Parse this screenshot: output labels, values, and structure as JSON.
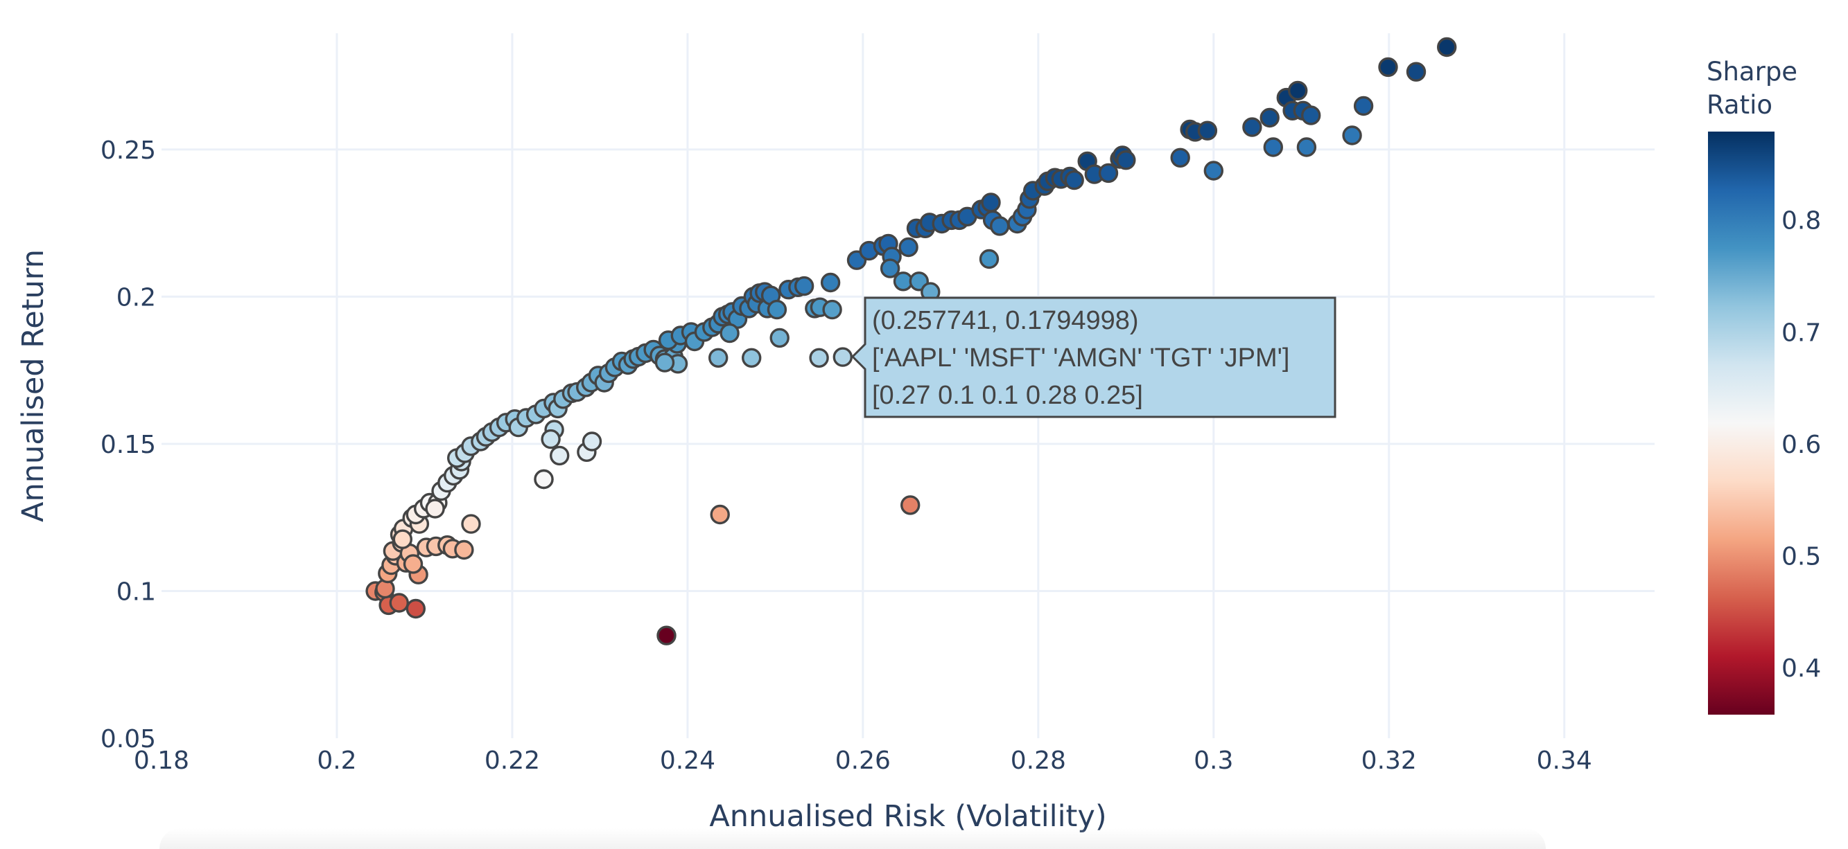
{
  "chart_data": {
    "type": "scatter",
    "title": "",
    "xlabel": "Annualised Risk (Volatility)",
    "ylabel": "Annualised Return",
    "xlim": [
      0.18,
      0.3503
    ],
    "ylim": [
      0.05,
      0.2895
    ],
    "grid": true,
    "x_ticks": [
      0.18,
      0.2,
      0.22,
      0.24,
      0.26,
      0.28,
      0.3,
      0.32,
      0.34
    ],
    "x_tick_labels": [
      "0.18",
      "0.2",
      "0.22",
      "0.24",
      "0.26",
      "0.28",
      "0.3",
      "0.32",
      "0.34"
    ],
    "y_ticks": [
      0.05,
      0.1,
      0.15,
      0.2,
      0.25
    ],
    "y_tick_labels": [
      "0.05",
      "0.1",
      "0.15",
      "0.2",
      "0.25"
    ],
    "colorbar": {
      "title_lines": [
        "Sharpe",
        "Ratio"
      ],
      "colorscale": "RdBu",
      "range": [
        0.358,
        0.879
      ],
      "ticks": [
        0.4,
        0.5,
        0.6,
        0.7,
        0.8
      ],
      "tick_labels": [
        "0.4",
        "0.5",
        "0.6",
        "0.7",
        "0.8"
      ],
      "placement": "right"
    },
    "color_metric": "sharpe = return / risk",
    "marker_outline": "#444444",
    "points": [
      [
        0.2044,
        0.1
      ],
      [
        0.2054,
        0.0996
      ],
      [
        0.2059,
        0.0952
      ],
      [
        0.2071,
        0.096
      ],
      [
        0.2055,
        0.1008
      ],
      [
        0.2058,
        0.106
      ],
      [
        0.2062,
        0.1088
      ],
      [
        0.2067,
        0.112
      ],
      [
        0.2064,
        0.1136
      ],
      [
        0.2074,
        0.1164
      ],
      [
        0.2072,
        0.1192
      ],
      [
        0.2076,
        0.1212
      ],
      [
        0.2086,
        0.1248
      ],
      [
        0.2094,
        0.1228
      ],
      [
        0.2093,
        0.1056
      ],
      [
        0.209,
        0.094
      ],
      [
        0.2079,
        0.1096
      ],
      [
        0.2083,
        0.1128
      ],
      [
        0.2102,
        0.1148
      ],
      [
        0.2113,
        0.1152
      ],
      [
        0.2126,
        0.1156
      ],
      [
        0.2132,
        0.1144
      ],
      [
        0.2145,
        0.114
      ],
      [
        0.2153,
        0.1228
      ],
      [
        0.209,
        0.126
      ],
      [
        0.2099,
        0.128
      ],
      [
        0.2106,
        0.13
      ],
      [
        0.2115,
        0.13
      ],
      [
        0.2119,
        0.134
      ],
      [
        0.2126,
        0.1368
      ],
      [
        0.2133,
        0.1392
      ],
      [
        0.214,
        0.1412
      ],
      [
        0.2142,
        0.144
      ],
      [
        0.2137,
        0.1452
      ],
      [
        0.2146,
        0.1468
      ],
      [
        0.2153,
        0.1492
      ],
      [
        0.2164,
        0.1508
      ],
      [
        0.217,
        0.1524
      ],
      [
        0.2177,
        0.154
      ],
      [
        0.2185,
        0.1556
      ],
      [
        0.2193,
        0.1572
      ],
      [
        0.2203,
        0.1584
      ],
      [
        0.2207,
        0.1556
      ],
      [
        0.2216,
        0.1588
      ],
      [
        0.2227,
        0.16
      ],
      [
        0.2236,
        0.162
      ],
      [
        0.2247,
        0.164
      ],
      [
        0.2252,
        0.162
      ],
      [
        0.2248,
        0.1548
      ],
      [
        0.2254,
        0.146
      ],
      [
        0.2236,
        0.138
      ],
      [
        0.2285,
        0.1472
      ],
      [
        0.2291,
        0.1508
      ],
      [
        0.2258,
        0.1652
      ],
      [
        0.2268,
        0.1672
      ],
      [
        0.2274,
        0.1676
      ],
      [
        0.2284,
        0.1692
      ],
      [
        0.229,
        0.1708
      ],
      [
        0.2298,
        0.1732
      ],
      [
        0.2305,
        0.1708
      ],
      [
        0.231,
        0.174
      ],
      [
        0.2317,
        0.176
      ],
      [
        0.2325,
        0.178
      ],
      [
        0.2332,
        0.1768
      ],
      [
        0.2338,
        0.1788
      ],
      [
        0.2344,
        0.1796
      ],
      [
        0.2352,
        0.1808
      ],
      [
        0.2361,
        0.182
      ],
      [
        0.2368,
        0.18
      ],
      [
        0.2374,
        0.1788
      ],
      [
        0.2384,
        0.1796
      ],
      [
        0.2389,
        0.1772
      ],
      [
        0.2388,
        0.184
      ],
      [
        0.2378,
        0.1852
      ],
      [
        0.2392,
        0.1868
      ],
      [
        0.2404,
        0.188
      ],
      [
        0.2408,
        0.1848
      ],
      [
        0.2419,
        0.188
      ],
      [
        0.2428,
        0.1896
      ],
      [
        0.2435,
        0.1908
      ],
      [
        0.244,
        0.1932
      ],
      [
        0.2446,
        0.194
      ],
      [
        0.2451,
        0.1948
      ],
      [
        0.2457,
        0.1924
      ],
      [
        0.2448,
        0.1876
      ],
      [
        0.2462,
        0.1968
      ],
      [
        0.247,
        0.196
      ],
      [
        0.2475,
        0.2
      ],
      [
        0.2479,
        0.1976
      ],
      [
        0.2482,
        0.2012
      ],
      [
        0.2488,
        0.2016
      ],
      [
        0.2491,
        0.196
      ],
      [
        0.2495,
        0.2004
      ],
      [
        0.2502,
        0.1956
      ],
      [
        0.2505,
        0.186
      ],
      [
        0.2473,
        0.1792
      ],
      [
        0.2515,
        0.2024
      ],
      [
        0.2526,
        0.2032
      ],
      [
        0.2533,
        0.2036
      ],
      [
        0.2545,
        0.196
      ],
      [
        0.2551,
        0.1964
      ],
      [
        0.2565,
        0.1956
      ],
      [
        0.2563,
        0.2048
      ],
      [
        0.255,
        0.1792
      ],
      [
        0.2577,
        0.1794998
      ],
      [
        0.2593,
        0.2124
      ],
      [
        0.2607,
        0.2156
      ],
      [
        0.2623,
        0.2172
      ],
      [
        0.2629,
        0.218
      ],
      [
        0.2633,
        0.2136
      ],
      [
        0.2646,
        0.2052
      ],
      [
        0.2664,
        0.2052
      ],
      [
        0.2677,
        0.2016
      ],
      [
        0.2652,
        0.2168
      ],
      [
        0.2661,
        0.2232
      ],
      [
        0.2671,
        0.2232
      ],
      [
        0.2676,
        0.2252
      ],
      [
        0.269,
        0.2248
      ],
      [
        0.2701,
        0.226
      ],
      [
        0.271,
        0.226
      ],
      [
        0.2719,
        0.2272
      ],
      [
        0.2735,
        0.2296
      ],
      [
        0.2742,
        0.2304
      ],
      [
        0.2746,
        0.232
      ],
      [
        0.2748,
        0.226
      ],
      [
        0.2756,
        0.224
      ],
      [
        0.2776,
        0.2248
      ],
      [
        0.2782,
        0.2272
      ],
      [
        0.2787,
        0.2296
      ],
      [
        0.279,
        0.2332
      ],
      [
        0.2794,
        0.236
      ],
      [
        0.2807,
        0.2376
      ],
      [
        0.2811,
        0.2392
      ],
      [
        0.2819,
        0.2404
      ],
      [
        0.2826,
        0.24
      ],
      [
        0.2836,
        0.2408
      ],
      [
        0.2841,
        0.2396
      ],
      [
        0.2856,
        0.246
      ],
      [
        0.2864,
        0.2416
      ],
      [
        0.288,
        0.242
      ],
      [
        0.2893,
        0.2468
      ],
      [
        0.2896,
        0.248
      ],
      [
        0.29,
        0.2464
      ],
      [
        0.2962,
        0.2472
      ],
      [
        0.2973,
        0.2568
      ],
      [
        0.2979,
        0.256
      ],
      [
        0.2993,
        0.2564
      ],
      [
        0.3,
        0.2428
      ],
      [
        0.3044,
        0.2576
      ],
      [
        0.3064,
        0.2608
      ],
      [
        0.3068,
        0.2508
      ],
      [
        0.3083,
        0.2676
      ],
      [
        0.309,
        0.2632
      ],
      [
        0.3096,
        0.27
      ],
      [
        0.3102,
        0.2632
      ],
      [
        0.3106,
        0.2508
      ],
      [
        0.3111,
        0.2616
      ],
      [
        0.3158,
        0.2548
      ],
      [
        0.3171,
        0.2648
      ],
      [
        0.3199,
        0.278
      ],
      [
        0.3231,
        0.2764
      ],
      [
        0.3266,
        0.2848
      ],
      [
        0.2744,
        0.2128
      ],
      [
        0.2631,
        0.2096
      ],
      [
        0.2435,
        0.1792
      ],
      [
        0.2374,
        0.1776
      ],
      [
        0.2244,
        0.1516
      ],
      [
        0.2236,
        0.138
      ],
      [
        0.2376,
        0.0849
      ],
      [
        0.2437,
        0.126
      ],
      [
        0.2654,
        0.1292
      ],
      [
        0.2112,
        0.128
      ],
      [
        0.2075,
        0.1176
      ],
      [
        0.2087,
        0.1092
      ]
    ]
  },
  "hover": {
    "coords": "(0.257741, 0.1794998)",
    "tickers": "['AAPL' 'MSFT' 'AMGN' 'TGT' 'JPM']",
    "weights": "[0.27 0.1  0.1  0.28 0.25]",
    "background": "#b2d6ea",
    "border": "#444444"
  }
}
